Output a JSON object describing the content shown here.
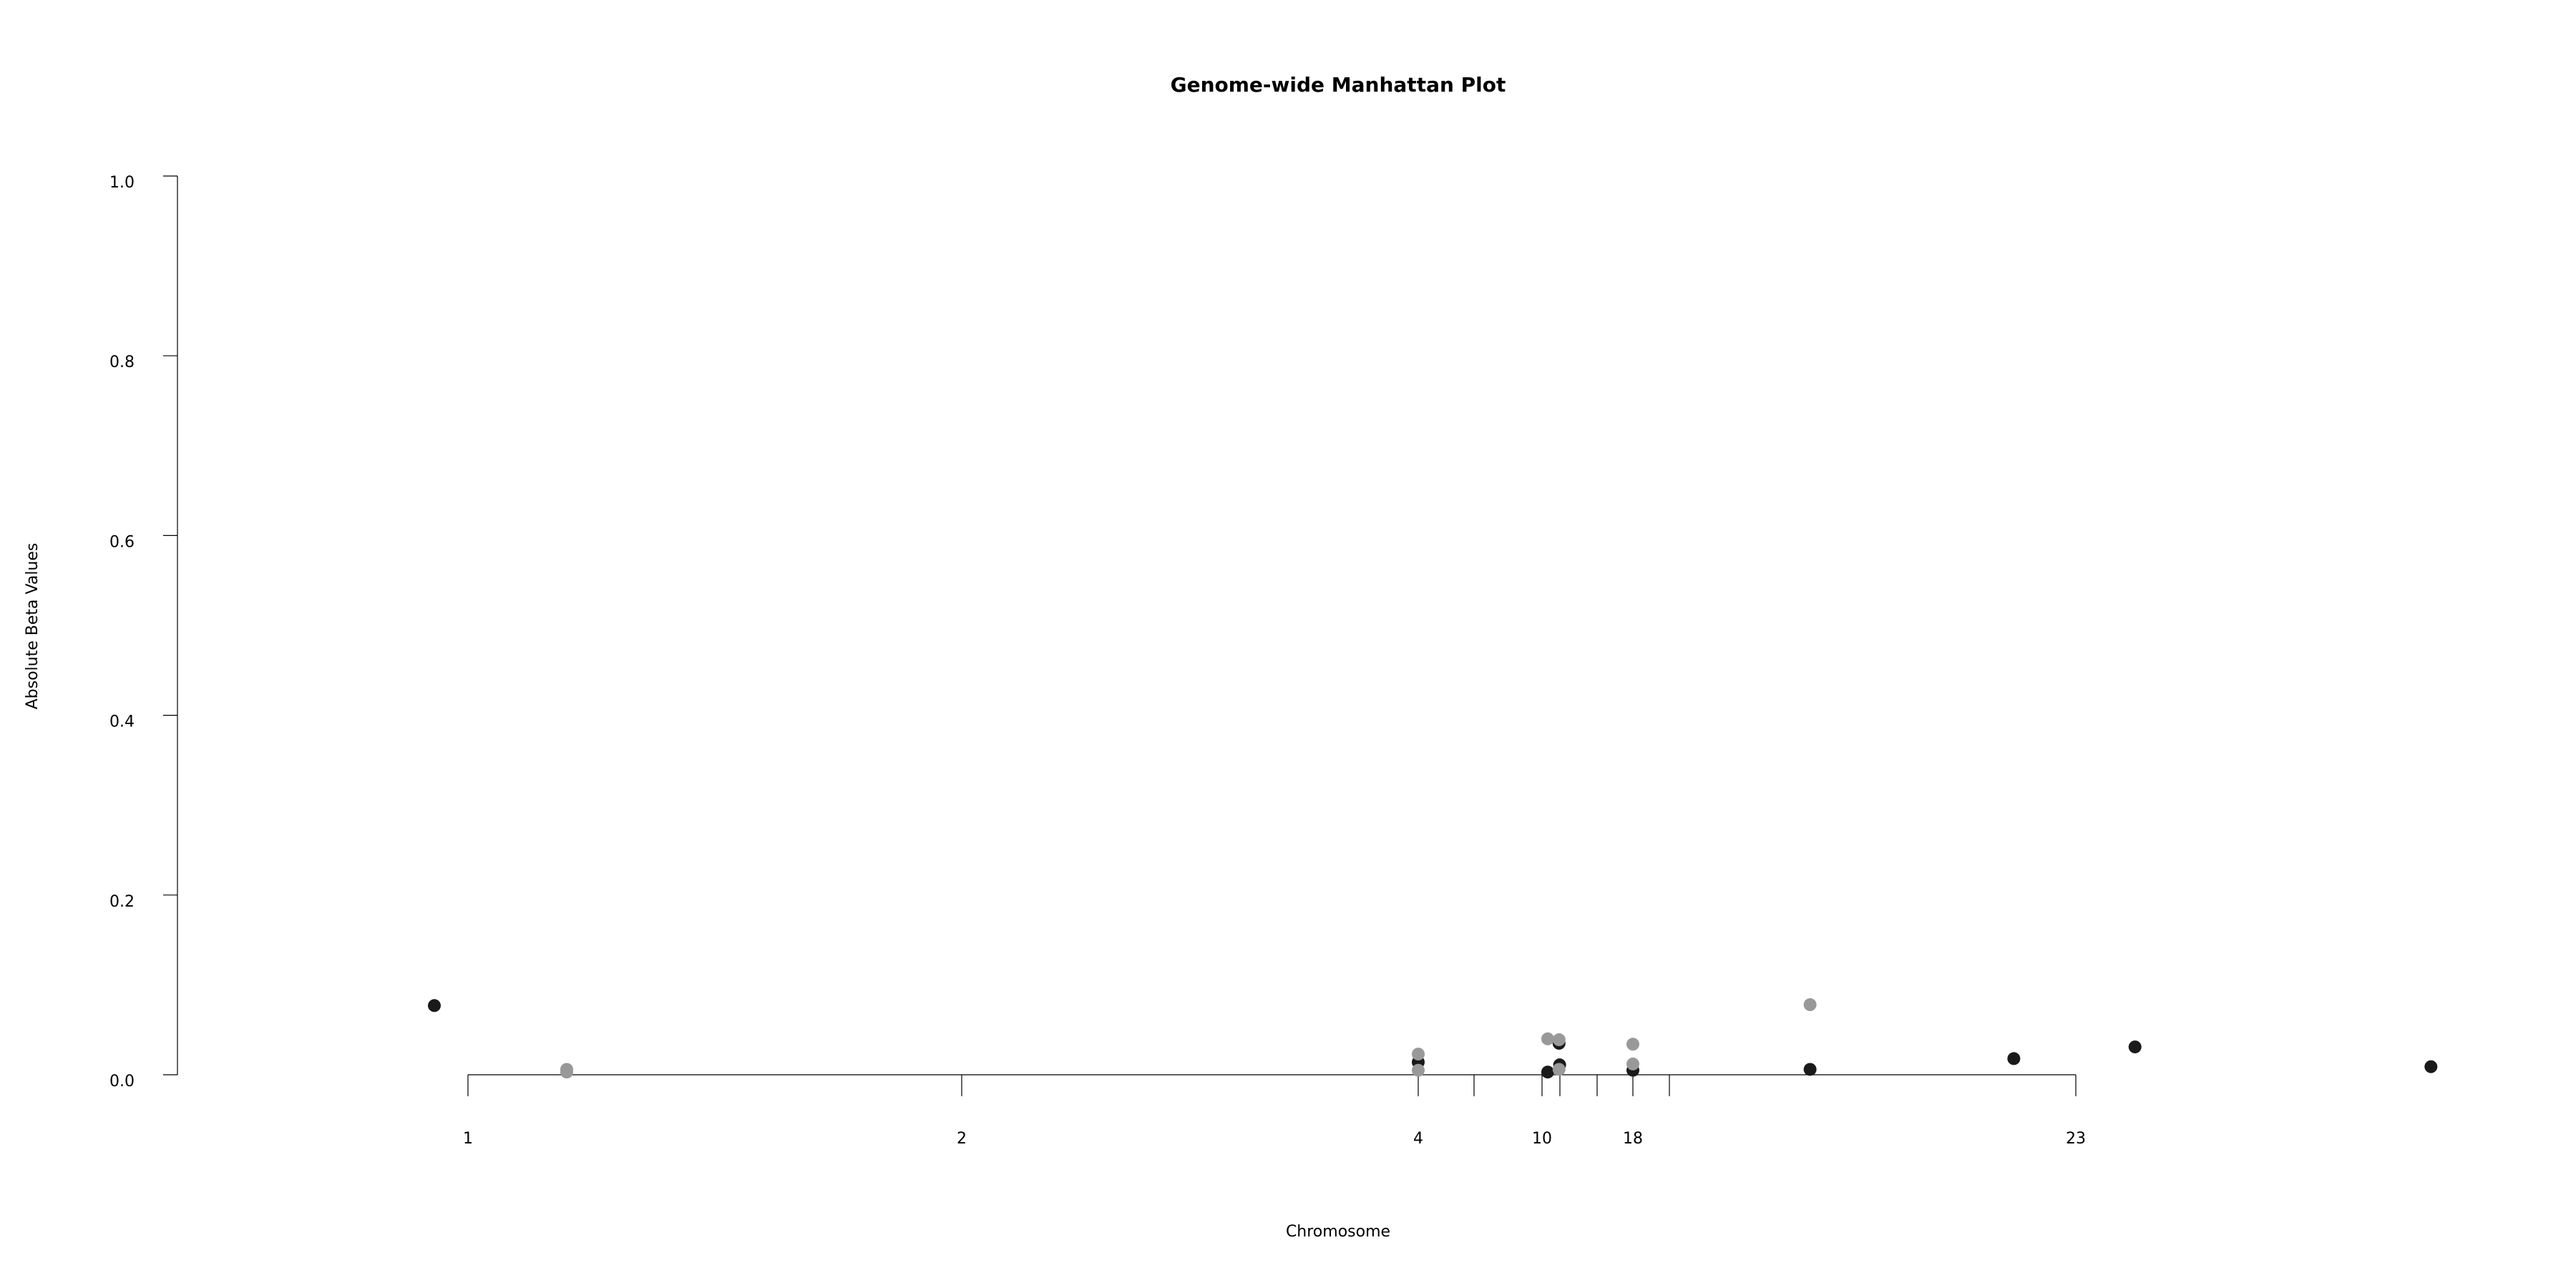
{
  "chart_data": {
    "type": "scatter",
    "title": "Genome-wide Manhattan Plot",
    "xlabel": "Chromosome",
    "ylabel": "Absolute Beta Values",
    "ylim": [
      0,
      1.0
    ],
    "yticks": [
      "0.0",
      "0.2",
      "0.4",
      "0.6",
      "0.8",
      "1.0"
    ],
    "x_tick_labels": [
      "1",
      "2",
      "4",
      "10",
      "18",
      "23"
    ],
    "grid": false,
    "colors": {
      "dark": "#1a1a1a",
      "light": "#999999"
    },
    "series": [
      {
        "color": "dark",
        "points": [
          {
            "x": 0.5,
            "y": 0.077
          },
          {
            "x": 4.0,
            "y": 0.014
          },
          {
            "x": 10.5,
            "y": 0.003
          },
          {
            "x": 11.5,
            "y": 0.035
          },
          {
            "x": 11.55,
            "y": 0.011
          },
          {
            "x": 18.0,
            "y": 0.005
          },
          {
            "x": 20.0,
            "y": 0.006
          },
          {
            "x": 22.3,
            "y": 0.018
          },
          {
            "x": 24.0,
            "y": 0.031
          },
          {
            "x": 29.0,
            "y": 0.009
          }
        ]
      },
      {
        "color": "light",
        "points": [
          {
            "x": 1.2,
            "y": 0.006
          },
          {
            "x": 1.2,
            "y": 0.003
          },
          {
            "x": 4.0,
            "y": 0.023
          },
          {
            "x": 4.0,
            "y": 0.005
          },
          {
            "x": 10.5,
            "y": 0.04
          },
          {
            "x": 11.5,
            "y": 0.039
          },
          {
            "x": 11.5,
            "y": 0.006
          },
          {
            "x": 18.0,
            "y": 0.034
          },
          {
            "x": 18.0,
            "y": 0.012
          },
          {
            "x": 20.0,
            "y": 0.078
          }
        ]
      }
    ]
  }
}
